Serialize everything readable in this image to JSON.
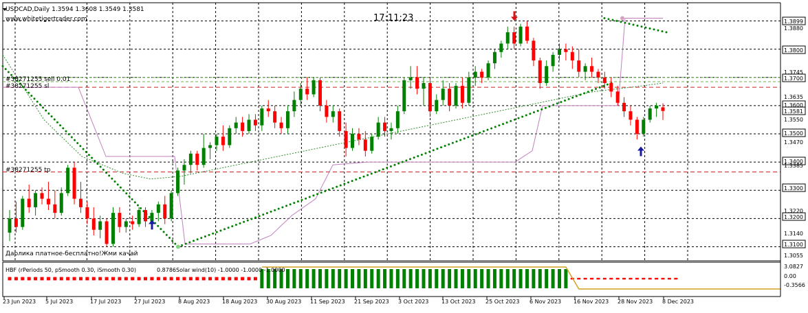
{
  "symbol_header": "USDCAD,Daily  1.3594 1.3608 1.3549 1.3581",
  "website": "www.whitetigertrader.com",
  "clock": "17:11:23",
  "order_labels": {
    "sell": "#38271255 sell 0.01",
    "sl": "#38271255 sl",
    "tp": "#38271255 tp"
  },
  "promo_text": "Дарлика платное-бесплатно!Жми качай",
  "indicator_label": "HBF  (rPeriods 50, pSmooth 0.30, iSmooth 0.30)",
  "indicator_value": "0.8786",
  "indicator_label2": "Solar wind(10) -1.0000 -1.0000 -1.0000",
  "colors": {
    "bull": "#008000",
    "bear": "#ff0000",
    "ma": "#2e8b2e",
    "channel": "#c080c0",
    "dashed_red": "#cc2222",
    "dashed_green": "#6ab04c",
    "arrow_up": "#1a1aa0",
    "arrow_down": "#dd1111"
  },
  "chart_data": {
    "type": "candlestick",
    "title": "USDCAD,Daily  1.3594 1.3608 1.3549 1.3581",
    "ylim": [
      1.305,
      1.395
    ],
    "price_axis_labels": [
      "1.3899",
      "1.3880",
      "1.3800",
      "1.3745",
      "1.3700",
      "1.3635",
      "1.3600",
      "1.3581",
      "1.3550",
      "1.3500",
      "1.3470",
      "1.3400",
      "1.3385",
      "1.3300",
      "1.3220",
      "1.3200",
      "1.3140",
      "1.3100",
      "1.3055"
    ],
    "highlighted_price_labels": [
      "1.3899",
      "1.3800",
      "1.3700",
      "1.3600",
      "1.3581",
      "1.3500",
      "1.3400",
      "1.3300",
      "1.3200",
      "1.3100"
    ],
    "date_axis_labels": [
      "23 Jun 2023",
      "5 Jul 2023",
      "17 Jul 2023",
      "27 Jul 2023",
      "8 Aug 2023",
      "18 Aug 2023",
      "30 Aug 2023",
      "11 Sep 2023",
      "21 Sep 2023",
      "3 Oct 2023",
      "13 Oct 2023",
      "25 Oct 2023",
      "6 Nov 2023",
      "16 Nov 2023",
      "28 Nov 2023",
      "8 Dec 2023"
    ],
    "order_levels": {
      "sell": 1.3665,
      "sl": 1.3665,
      "tp": 1.3365
    },
    "green_dashed_levels": [
      1.37,
      1.3685
    ],
    "candles": [
      [
        1.315,
        1.323,
        1.312,
        1.32
      ],
      [
        1.32,
        1.326,
        1.315,
        1.317
      ],
      [
        1.317,
        1.328,
        1.316,
        1.327
      ],
      [
        1.327,
        1.332,
        1.322,
        1.324
      ],
      [
        1.324,
        1.33,
        1.321,
        1.329
      ],
      [
        1.329,
        1.331,
        1.325,
        1.327
      ],
      [
        1.327,
        1.333,
        1.323,
        1.325
      ],
      [
        1.325,
        1.33,
        1.32,
        1.322
      ],
      [
        1.322,
        1.331,
        1.321,
        1.329
      ],
      [
        1.329,
        1.339,
        1.328,
        1.338
      ],
      [
        1.338,
        1.34,
        1.325,
        1.327
      ],
      [
        1.327,
        1.333,
        1.322,
        1.324
      ],
      [
        1.324,
        1.326,
        1.318,
        1.32
      ],
      [
        1.32,
        1.324,
        1.314,
        1.316
      ],
      [
        1.316,
        1.321,
        1.313,
        1.319
      ],
      [
        1.319,
        1.32,
        1.31,
        1.311
      ],
      [
        1.311,
        1.324,
        1.31,
        1.322
      ],
      [
        1.322,
        1.324,
        1.315,
        1.317
      ],
      [
        1.317,
        1.32,
        1.315,
        1.319
      ],
      [
        1.319,
        1.321,
        1.316,
        1.318
      ],
      [
        1.318,
        1.324,
        1.317,
        1.323
      ],
      [
        1.323,
        1.324,
        1.317,
        1.319
      ],
      [
        1.319,
        1.323,
        1.318,
        1.322
      ],
      [
        1.322,
        1.326,
        1.319,
        1.325
      ],
      [
        1.325,
        1.328,
        1.318,
        1.32
      ],
      [
        1.32,
        1.33,
        1.319,
        1.329
      ],
      [
        1.329,
        1.338,
        1.328,
        1.337
      ],
      [
        1.337,
        1.341,
        1.332,
        1.339
      ],
      [
        1.339,
        1.344,
        1.336,
        1.343
      ],
      [
        1.343,
        1.344,
        1.337,
        1.339
      ],
      [
        1.339,
        1.35,
        1.338,
        1.345
      ],
      [
        1.345,
        1.347,
        1.341,
        1.346
      ],
      [
        1.346,
        1.35,
        1.344,
        1.349
      ],
      [
        1.349,
        1.353,
        1.344,
        1.346
      ],
      [
        1.346,
        1.353,
        1.345,
        1.352
      ],
      [
        1.352,
        1.356,
        1.35,
        1.354
      ],
      [
        1.354,
        1.356,
        1.349,
        1.351
      ],
      [
        1.351,
        1.357,
        1.35,
        1.355
      ],
      [
        1.355,
        1.357,
        1.351,
        1.353
      ],
      [
        1.353,
        1.36,
        1.351,
        1.359
      ],
      [
        1.359,
        1.362,
        1.356,
        1.358
      ],
      [
        1.358,
        1.36,
        1.352,
        1.354
      ],
      [
        1.354,
        1.356,
        1.35,
        1.352
      ],
      [
        1.352,
        1.36,
        1.35,
        1.358
      ],
      [
        1.358,
        1.365,
        1.356,
        1.362
      ],
      [
        1.362,
        1.368,
        1.36,
        1.366
      ],
      [
        1.366,
        1.37,
        1.362,
        1.364
      ],
      [
        1.364,
        1.37,
        1.363,
        1.369
      ],
      [
        1.369,
        1.37,
        1.358,
        1.36
      ],
      [
        1.36,
        1.362,
        1.354,
        1.356
      ],
      [
        1.356,
        1.36,
        1.354,
        1.358
      ],
      [
        1.358,
        1.359,
        1.349,
        1.351
      ],
      [
        1.351,
        1.354,
        1.342,
        1.345
      ],
      [
        1.345,
        1.352,
        1.344,
        1.35
      ],
      [
        1.35,
        1.352,
        1.346,
        1.348
      ],
      [
        1.348,
        1.351,
        1.342,
        1.344
      ],
      [
        1.344,
        1.35,
        1.343,
        1.349
      ],
      [
        1.349,
        1.356,
        1.348,
        1.354
      ],
      [
        1.354,
        1.356,
        1.349,
        1.351
      ],
      [
        1.351,
        1.354,
        1.348,
        1.352
      ],
      [
        1.352,
        1.36,
        1.35,
        1.358
      ],
      [
        1.358,
        1.37,
        1.357,
        1.369
      ],
      [
        1.369,
        1.374,
        1.366,
        1.37
      ],
      [
        1.37,
        1.374,
        1.364,
        1.366
      ],
      [
        1.366,
        1.37,
        1.36,
        1.368
      ],
      [
        1.368,
        1.37,
        1.356,
        1.358
      ],
      [
        1.358,
        1.364,
        1.357,
        1.362
      ],
      [
        1.362,
        1.369,
        1.36,
        1.366
      ],
      [
        1.366,
        1.368,
        1.358,
        1.36
      ],
      [
        1.36,
        1.368,
        1.359,
        1.367
      ],
      [
        1.367,
        1.37,
        1.359,
        1.361
      ],
      [
        1.361,
        1.372,
        1.36,
        1.37
      ],
      [
        1.37,
        1.374,
        1.367,
        1.372
      ],
      [
        1.372,
        1.373,
        1.368,
        1.37
      ],
      [
        1.37,
        1.376,
        1.369,
        1.375
      ],
      [
        1.375,
        1.38,
        1.373,
        1.379
      ],
      [
        1.379,
        1.383,
        1.377,
        1.382
      ],
      [
        1.382,
        1.388,
        1.38,
        1.386
      ],
      [
        1.386,
        1.388,
        1.38,
        1.382
      ],
      [
        1.382,
        1.389,
        1.381,
        1.388
      ],
      [
        1.388,
        1.3899,
        1.382,
        1.383
      ],
      [
        1.383,
        1.384,
        1.374,
        1.376
      ],
      [
        1.376,
        1.377,
        1.366,
        1.368
      ],
      [
        1.368,
        1.376,
        1.367,
        1.374
      ],
      [
        1.374,
        1.379,
        1.372,
        1.378
      ],
      [
        1.378,
        1.382,
        1.376,
        1.38
      ],
      [
        1.38,
        1.382,
        1.376,
        1.379
      ],
      [
        1.379,
        1.381,
        1.373,
        1.376
      ],
      [
        1.376,
        1.38,
        1.37,
        1.372
      ],
      [
        1.372,
        1.375,
        1.369,
        1.374
      ],
      [
        1.374,
        1.377,
        1.37,
        1.372
      ],
      [
        1.372,
        1.373,
        1.368,
        1.37
      ],
      [
        1.37,
        1.372,
        1.366,
        1.368
      ],
      [
        1.368,
        1.37,
        1.363,
        1.365
      ],
      [
        1.365,
        1.367,
        1.36,
        1.361
      ],
      [
        1.361,
        1.363,
        1.356,
        1.358
      ],
      [
        1.358,
        1.36,
        1.353,
        1.355
      ],
      [
        1.355,
        1.356,
        1.348,
        1.35
      ],
      [
        1.35,
        1.356,
        1.349,
        1.355
      ],
      [
        1.355,
        1.36,
        1.354,
        1.359
      ],
      [
        1.359,
        1.361,
        1.356,
        1.36
      ],
      [
        1.3594,
        1.3608,
        1.3549,
        1.3581
      ]
    ],
    "ma_line": [
      [
        0,
        1.378
      ],
      [
        60,
        1.355
      ],
      [
        115,
        1.342
      ],
      [
        175,
        1.336
      ],
      [
        215,
        1.334
      ],
      [
        260,
        1.335
      ],
      [
        320,
        1.338
      ],
      [
        380,
        1.341
      ],
      [
        440,
        1.344
      ],
      [
        500,
        1.347
      ],
      [
        560,
        1.35
      ],
      [
        620,
        1.353
      ],
      [
        680,
        1.356
      ],
      [
        740,
        1.359
      ],
      [
        800,
        1.362
      ],
      [
        860,
        1.365
      ],
      [
        930,
        1.367
      ],
      [
        960,
        1.368
      ]
    ],
    "channel_line": [
      [
        0,
        1.3665
      ],
      [
        110,
        1.3665
      ],
      [
        150,
        1.342
      ],
      [
        250,
        1.342
      ],
      [
        265,
        1.311
      ],
      [
        360,
        1.311
      ],
      [
        390,
        1.314
      ],
      [
        420,
        1.321
      ],
      [
        455,
        1.327
      ],
      [
        480,
        1.339
      ],
      [
        530,
        1.34
      ],
      [
        560,
        1.34
      ],
      [
        650,
        1.34
      ],
      [
        745,
        1.34
      ],
      [
        770,
        1.344
      ],
      [
        785,
        1.36
      ],
      [
        895,
        1.36
      ],
      [
        905,
        1.391
      ],
      [
        960,
        1.391
      ]
    ],
    "psar_dots": {
      "from": [
        0,
        1.374
      ],
      "to_low": [
        255,
        1.31
      ],
      "to_high": [
        885,
        1.368
      ]
    },
    "psar_high_dots": {
      "from": [
        875,
        1.391
      ],
      "to": [
        965,
        1.386
      ]
    },
    "arrows_up": [
      [
        221,
        1.3195
      ],
      [
        932,
        1.3455
      ]
    ],
    "arrows_down": [
      [
        748,
        1.392
      ]
    ],
    "indicator_histogram": {
      "ylim": [
        -0.3566,
        3.0827
      ],
      "axis_labels": [
        "3.0827",
        "0.00",
        "-0.3566"
      ],
      "segments": [
        {
          "from": 0,
          "to": 38,
          "sign": "neg",
          "value": 0.8
        },
        {
          "from": 39,
          "to": 86,
          "sign": "pos",
          "value": 1.0
        },
        {
          "from": 87,
          "to": 103,
          "sign": "neg",
          "value": 0.4
        }
      ]
    }
  }
}
